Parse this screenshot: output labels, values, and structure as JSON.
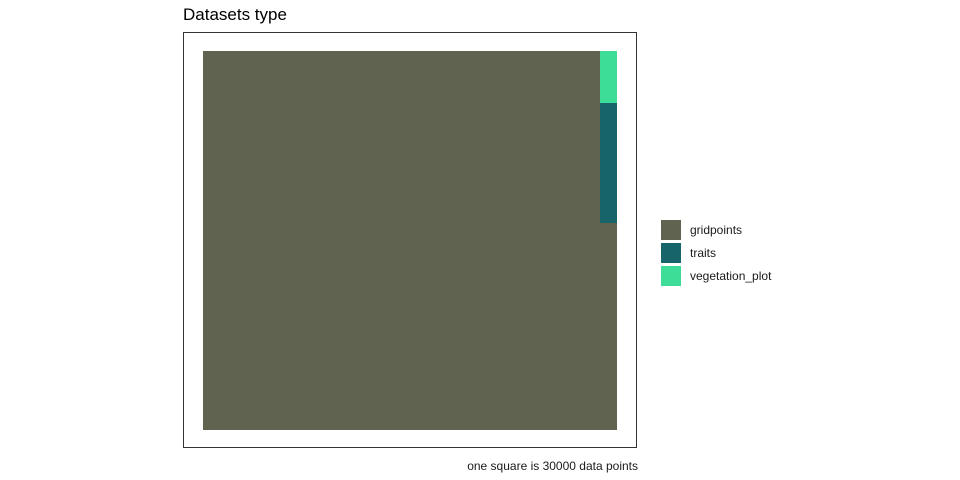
{
  "title": "Datasets type",
  "caption": "one square is 30000 data points",
  "chart_data": {
    "type": "waffle",
    "title": "Datasets type",
    "unit_note": "one square is 30000 data points",
    "grid": false,
    "legend_position": "right",
    "categories": [
      "gridpoints",
      "traits",
      "vegetation_plot"
    ],
    "colors": {
      "gridpoints": "#5f634f",
      "traits": "#17646a",
      "vegetation_plot": "#3ddc97"
    },
    "approx_share_of_area": {
      "gridpoints": 0.988,
      "traits": 0.0125,
      "vegetation_plot": 0.0054
    }
  },
  "legend": [
    {
      "label": "gridpoints",
      "color": "#5f634f"
    },
    {
      "label": "traits",
      "color": "#17646a"
    },
    {
      "label": "vegetation_plot",
      "color": "#3ddc97"
    }
  ]
}
